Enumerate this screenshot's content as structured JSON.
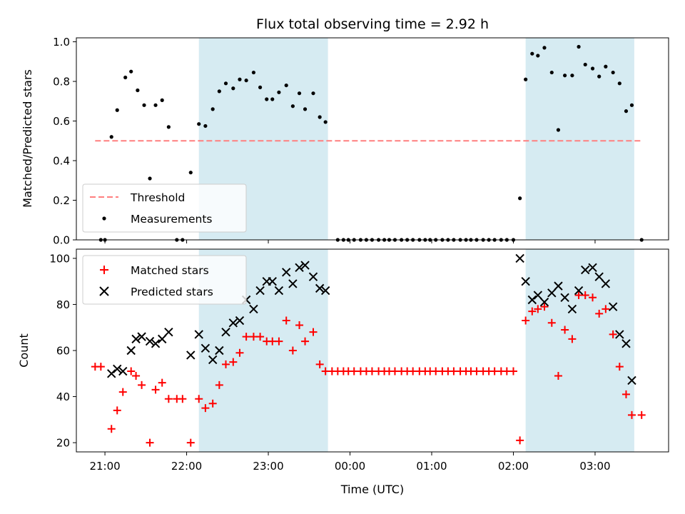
{
  "chart_data": {
    "type": "scatter",
    "title": "Flux total observing time = 2.92 h",
    "xlabel": "Time (UTC)",
    "x_ticks": [
      "21:00",
      "22:00",
      "23:00",
      "00:00",
      "01:00",
      "02:00",
      "03:00"
    ],
    "x_tick_hours": [
      21,
      22,
      23,
      24,
      25,
      26,
      27
    ],
    "xlim_hours": [
      20.65,
      27.9
    ],
    "shaded_intervals_hours": [
      [
        22.15,
        23.73
      ],
      [
        26.15,
        27.48
      ]
    ],
    "colors": {
      "shade": "#add8e6",
      "threshold": "#ff7f7f",
      "measurement": "#000000",
      "matched": "#ff0000",
      "predicted": "#000000"
    },
    "panels": [
      {
        "ylabel": "Matched/Predicted stars",
        "ylim": [
          0,
          1.02
        ],
        "y_ticks": [
          "0.0",
          "0.2",
          "0.4",
          "0.6",
          "0.8",
          "1.0"
        ],
        "y_tick_values": [
          0,
          0.2,
          0.4,
          0.6,
          0.8,
          1.0
        ],
        "legend": {
          "position": "lower left",
          "entries": [
            "Threshold",
            "Measurements"
          ]
        },
        "series": [
          {
            "name": "Threshold",
            "kind": "dashed-line",
            "x_hours": [
              20.88,
              27.57
            ],
            "values": [
              0.5,
              0.5
            ]
          },
          {
            "name": "Measurements",
            "kind": "dot",
            "points": [
              [
                20.95,
                0.0
              ],
              [
                21.0,
                0.0
              ],
              [
                21.08,
                0.52
              ],
              [
                21.15,
                0.655
              ],
              [
                21.25,
                0.82
              ],
              [
                21.32,
                0.85
              ],
              [
                21.4,
                0.755
              ],
              [
                21.48,
                0.68
              ],
              [
                21.55,
                0.31
              ],
              [
                21.62,
                0.68
              ],
              [
                21.7,
                0.705
              ],
              [
                21.78,
                0.57
              ],
              [
                21.88,
                0.0
              ],
              [
                21.95,
                0.0
              ],
              [
                22.05,
                0.34
              ],
              [
                22.15,
                0.585
              ],
              [
                22.23,
                0.575
              ],
              [
                22.32,
                0.66
              ],
              [
                22.4,
                0.75
              ],
              [
                22.48,
                0.79
              ],
              [
                22.57,
                0.765
              ],
              [
                22.65,
                0.81
              ],
              [
                22.73,
                0.805
              ],
              [
                22.82,
                0.845
              ],
              [
                22.9,
                0.77
              ],
              [
                22.98,
                0.71
              ],
              [
                23.05,
                0.71
              ],
              [
                23.13,
                0.745
              ],
              [
                23.22,
                0.78
              ],
              [
                23.3,
                0.675
              ],
              [
                23.38,
                0.74
              ],
              [
                23.45,
                0.66
              ],
              [
                23.55,
                0.74
              ],
              [
                23.63,
                0.62
              ],
              [
                23.7,
                0.595
              ],
              [
                23.85,
                0.0
              ],
              [
                23.92,
                0.0
              ],
              [
                23.98,
                0.0
              ],
              [
                24.05,
                0.0
              ],
              [
                24.13,
                0.0
              ],
              [
                24.2,
                0.0
              ],
              [
                24.27,
                0.0
              ],
              [
                24.35,
                0.0
              ],
              [
                24.42,
                0.0
              ],
              [
                24.48,
                0.0
              ],
              [
                24.55,
                0.0
              ],
              [
                24.63,
                0.0
              ],
              [
                24.7,
                0.0
              ],
              [
                24.77,
                0.0
              ],
              [
                24.85,
                0.0
              ],
              [
                24.92,
                0.0
              ],
              [
                24.98,
                0.0
              ],
              [
                25.05,
                0.0
              ],
              [
                25.13,
                0.0
              ],
              [
                25.2,
                0.0
              ],
              [
                25.27,
                0.0
              ],
              [
                25.35,
                0.0
              ],
              [
                25.42,
                0.0
              ],
              [
                25.48,
                0.0
              ],
              [
                25.55,
                0.0
              ],
              [
                25.63,
                0.0
              ],
              [
                25.7,
                0.0
              ],
              [
                25.77,
                0.0
              ],
              [
                25.85,
                0.0
              ],
              [
                25.92,
                0.0
              ],
              [
                26.0,
                0.0
              ],
              [
                26.08,
                0.21
              ],
              [
                26.15,
                0.81
              ],
              [
                26.23,
                0.94
              ],
              [
                26.3,
                0.93
              ],
              [
                26.38,
                0.97
              ],
              [
                26.47,
                0.845
              ],
              [
                26.55,
                0.555
              ],
              [
                26.63,
                0.83
              ],
              [
                26.72,
                0.83
              ],
              [
                26.8,
                0.975
              ],
              [
                26.88,
                0.885
              ],
              [
                26.97,
                0.865
              ],
              [
                27.05,
                0.825
              ],
              [
                27.13,
                0.875
              ],
              [
                27.22,
                0.845
              ],
              [
                27.3,
                0.79
              ],
              [
                27.38,
                0.65
              ],
              [
                27.45,
                0.68
              ],
              [
                27.57,
                0.0
              ]
            ]
          }
        ]
      },
      {
        "ylabel": "Count",
        "ylim": [
          16,
          104
        ],
        "y_ticks": [
          "20",
          "40",
          "60",
          "80",
          "100"
        ],
        "y_tick_values": [
          20,
          40,
          60,
          80,
          100
        ],
        "legend": {
          "position": "upper left",
          "entries": [
            "Matched stars",
            "Predicted stars"
          ]
        },
        "series": [
          {
            "name": "Matched stars",
            "kind": "plus",
            "points": [
              [
                20.88,
                53
              ],
              [
                20.95,
                53
              ],
              [
                21.08,
                26
              ],
              [
                21.15,
                34
              ],
              [
                21.22,
                42
              ],
              [
                21.32,
                51
              ],
              [
                21.38,
                49
              ],
              [
                21.45,
                45
              ],
              [
                21.55,
                20
              ],
              [
                21.62,
                43
              ],
              [
                21.7,
                46
              ],
              [
                21.78,
                39
              ],
              [
                21.88,
                39
              ],
              [
                21.95,
                39
              ],
              [
                22.05,
                20
              ],
              [
                22.15,
                39
              ],
              [
                22.23,
                35
              ],
              [
                22.32,
                37
              ],
              [
                22.4,
                45
              ],
              [
                22.48,
                54
              ],
              [
                22.57,
                55
              ],
              [
                22.65,
                59
              ],
              [
                22.73,
                66
              ],
              [
                22.82,
                66
              ],
              [
                22.9,
                66
              ],
              [
                22.98,
                64
              ],
              [
                23.05,
                64
              ],
              [
                23.13,
                64
              ],
              [
                23.22,
                73
              ],
              [
                23.3,
                60
              ],
              [
                23.38,
                71
              ],
              [
                23.45,
                64
              ],
              [
                23.55,
                68
              ],
              [
                23.63,
                54
              ],
              [
                23.7,
                51
              ],
              [
                23.78,
                51
              ],
              [
                23.85,
                51
              ],
              [
                23.92,
                51
              ],
              [
                23.98,
                51
              ],
              [
                24.05,
                51
              ],
              [
                24.13,
                51
              ],
              [
                24.2,
                51
              ],
              [
                24.27,
                51
              ],
              [
                24.35,
                51
              ],
              [
                24.42,
                51
              ],
              [
                24.48,
                51
              ],
              [
                24.55,
                51
              ],
              [
                24.63,
                51
              ],
              [
                24.7,
                51
              ],
              [
                24.77,
                51
              ],
              [
                24.85,
                51
              ],
              [
                24.92,
                51
              ],
              [
                24.98,
                51
              ],
              [
                25.05,
                51
              ],
              [
                25.13,
                51
              ],
              [
                25.2,
                51
              ],
              [
                25.27,
                51
              ],
              [
                25.35,
                51
              ],
              [
                25.42,
                51
              ],
              [
                25.48,
                51
              ],
              [
                25.55,
                51
              ],
              [
                25.63,
                51
              ],
              [
                25.7,
                51
              ],
              [
                25.77,
                51
              ],
              [
                25.85,
                51
              ],
              [
                25.92,
                51
              ],
              [
                26.0,
                51
              ],
              [
                26.08,
                21
              ],
              [
                26.15,
                73
              ],
              [
                26.23,
                77
              ],
              [
                26.3,
                78
              ],
              [
                26.38,
                79
              ],
              [
                26.47,
                72
              ],
              [
                26.55,
                49
              ],
              [
                26.63,
                69
              ],
              [
                26.72,
                65
              ],
              [
                26.8,
                84
              ],
              [
                26.88,
                84
              ],
              [
                26.97,
                83
              ],
              [
                27.05,
                76
              ],
              [
                27.13,
                78
              ],
              [
                27.22,
                67
              ],
              [
                27.3,
                53
              ],
              [
                27.38,
                41
              ],
              [
                27.45,
                32
              ],
              [
                27.57,
                32
              ]
            ]
          },
          {
            "name": "Predicted stars",
            "kind": "x",
            "points": [
              [
                21.08,
                50
              ],
              [
                21.15,
                52
              ],
              [
                21.22,
                51
              ],
              [
                21.32,
                60
              ],
              [
                21.38,
                65
              ],
              [
                21.45,
                66
              ],
              [
                21.55,
                64
              ],
              [
                21.62,
                63
              ],
              [
                21.7,
                65
              ],
              [
                21.78,
                68
              ],
              [
                22.05,
                58
              ],
              [
                22.15,
                67
              ],
              [
                22.23,
                61
              ],
              [
                22.32,
                56
              ],
              [
                22.4,
                60
              ],
              [
                22.48,
                68
              ],
              [
                22.57,
                72
              ],
              [
                22.65,
                73
              ],
              [
                22.73,
                82
              ],
              [
                22.82,
                78
              ],
              [
                22.9,
                86
              ],
              [
                22.98,
                90
              ],
              [
                23.05,
                90
              ],
              [
                23.13,
                86
              ],
              [
                23.22,
                94
              ],
              [
                23.3,
                89
              ],
              [
                23.38,
                96
              ],
              [
                23.45,
                97
              ],
              [
                23.55,
                92
              ],
              [
                23.63,
                87
              ],
              [
                23.7,
                86
              ],
              [
                26.08,
                100
              ],
              [
                26.15,
                90
              ],
              [
                26.23,
                82
              ],
              [
                26.3,
                84
              ],
              [
                26.38,
                81
              ],
              [
                26.47,
                85
              ],
              [
                26.55,
                88
              ],
              [
                26.63,
                83
              ],
              [
                26.72,
                78
              ],
              [
                26.8,
                86
              ],
              [
                26.88,
                95
              ],
              [
                26.97,
                96
              ],
              [
                27.05,
                92
              ],
              [
                27.13,
                89
              ],
              [
                27.22,
                79
              ],
              [
                27.3,
                67
              ],
              [
                27.38,
                63
              ],
              [
                27.45,
                47
              ]
            ]
          }
        ]
      }
    ]
  }
}
